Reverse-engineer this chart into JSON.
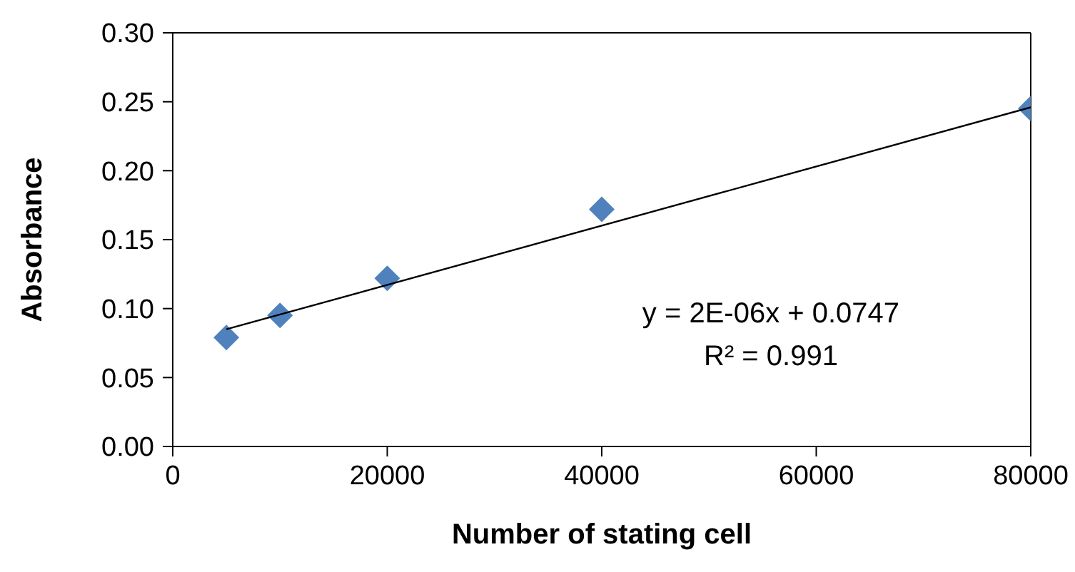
{
  "chart_data": {
    "type": "scatter",
    "xlabel": "Number of stating cell",
    "ylabel": "Absorbance",
    "x": [
      5000,
      10000,
      20000,
      40000,
      80000
    ],
    "series": [
      {
        "color": "#4f81bd",
        "marker": "diamond",
        "values": [
          0.079,
          0.095,
          0.122,
          0.172,
          0.245
        ]
      },
      {
        "type": "line",
        "color": "#000000",
        "marker": "none",
        "x": [
          5000,
          80000
        ],
        "values": [
          0.085,
          0.246
        ]
      }
    ],
    "xlim": [
      0,
      80000
    ],
    "xticks": [
      0,
      20000,
      40000,
      60000,
      80000
    ],
    "ylim": [
      0,
      0.3
    ],
    "yticks": [
      {
        "value": 0,
        "label": "0.00"
      },
      {
        "value": 0.05,
        "label": "0.05"
      },
      {
        "value": 0.1,
        "label": "0.10"
      },
      {
        "value": 0.15,
        "label": "0.15"
      },
      {
        "value": 0.2,
        "label": "0.20"
      },
      {
        "value": 0.25,
        "label": "0.25"
      },
      {
        "value": 0.3,
        "label": "0.30"
      }
    ],
    "annotations": [
      "y = 2E-06x + 0.0747",
      "R² = 0.991"
    ],
    "grid": false,
    "legend": false
  }
}
